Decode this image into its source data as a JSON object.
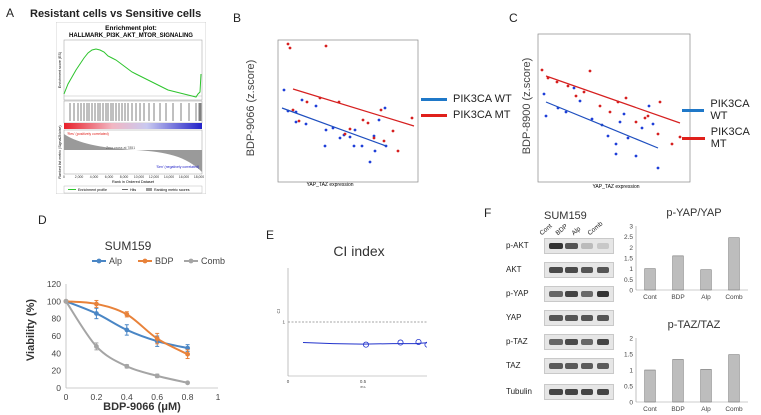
{
  "panels": {
    "A": {
      "label": "A",
      "title": "Resistant cells vs Sensitive cells",
      "plot_title_1": "Enrichment plot:",
      "plot_title_2": "HALLMARK_PI3K_AKT_MTOR_SIGNALING",
      "ylabel_top": "Enrichment score (ES)",
      "ylabel_bottom": "Ranked list metric (Signal2Noise)",
      "pos_label": "'Res' (positively correlated)",
      "neg_label": "'Sen' (negatively correlated)",
      "zero_label": "Zero cross at 7851",
      "xlabel": "Rank in Ordered Dataset",
      "legend": [
        "Enrichment profile",
        "Hits",
        "Ranking metric scores"
      ],
      "xticks": [
        "0",
        "2,000",
        "4,000",
        "6,000",
        "8,000",
        "10,000",
        "12,000",
        "14,000",
        "16,000",
        "18,000"
      ]
    },
    "B": {
      "label": "B",
      "ylabel": "BDP-9066 (z.score)",
      "xlabel": "YAP_TAZ expression",
      "legend": [
        {
          "name": "PIK3CA WT",
          "color": "#1f78c8"
        },
        {
          "name": "PIK3CA MT",
          "color": "#e0201b"
        }
      ]
    },
    "C": {
      "label": "C",
      "ylabel": "BDP-8900 (z.score)",
      "xlabel": "YAP_TAZ expression",
      "legend": [
        {
          "name": "PIK3CA WT",
          "color": "#1f78c8"
        },
        {
          "name": "PIK3CA MT",
          "color": "#e0201b"
        }
      ]
    },
    "D": {
      "label": "D"
    },
    "E": {
      "label": "E"
    },
    "F": {
      "label": "F",
      "cell_line": "SUM159",
      "lanes": [
        "Cont",
        "BDP",
        "Alp",
        "Comb"
      ],
      "blots": [
        "p-AKT",
        "AKT",
        "p-YAP",
        "YAP",
        "p-TAZ",
        "TAZ",
        "Tubulin"
      ]
    }
  },
  "chart_data": [
    {
      "type": "line",
      "title": "SUM159",
      "xlabel": "BDP-9066 (μM)",
      "ylabel": "Viability (%)",
      "x": [
        0,
        0.2,
        0.4,
        0.6,
        0.8
      ],
      "xlim": [
        0,
        1
      ],
      "ylim": [
        0,
        120
      ],
      "xticks": [
        "0",
        "0.2",
        "0.4",
        "0.6",
        "0.8",
        "1"
      ],
      "yticks": [
        "0",
        "20",
        "40",
        "60",
        "80",
        "100",
        "120"
      ],
      "legend_position": "top",
      "series": [
        {
          "name": "Alp",
          "color": "#4a86c5",
          "values": [
            100,
            86,
            67,
            54,
            46
          ],
          "errors": [
            0,
            6,
            6,
            6,
            4
          ]
        },
        {
          "name": "BDP",
          "color": "#e8823a",
          "values": [
            100,
            97,
            85,
            57,
            39
          ],
          "errors": [
            0,
            4,
            3,
            6,
            5
          ]
        },
        {
          "name": "Comb",
          "color": "#a5a5a5",
          "values": [
            100,
            48,
            25,
            14,
            6
          ],
          "errors": [
            0,
            4,
            2,
            2,
            1
          ]
        }
      ]
    },
    {
      "type": "scatter",
      "title": "CI index",
      "xlabel": "Fa",
      "ylabel": "CI",
      "xlim": [
        0,
        1
      ],
      "ylim": [
        0,
        2
      ],
      "xticks": [
        "0",
        "0.5",
        "1"
      ],
      "yticks": [
        "1"
      ],
      "reference_line": 1,
      "points": [
        {
          "x": 0.52,
          "y": 0.58
        },
        {
          "x": 0.75,
          "y": 0.62
        },
        {
          "x": 0.87,
          "y": 0.63
        },
        {
          "x": 0.93,
          "y": 0.58
        }
      ],
      "fit_curve": [
        [
          0.1,
          0.62
        ],
        [
          0.3,
          0.6
        ],
        [
          0.5,
          0.59
        ],
        [
          0.7,
          0.6
        ],
        [
          0.85,
          0.6
        ],
        [
          0.95,
          0.62
        ],
        [
          1.0,
          0.68
        ]
      ]
    },
    {
      "type": "bar",
      "title": "p-YAP/YAP",
      "categories": [
        "Cont",
        "BDP",
        "Alp",
        "Comb"
      ],
      "values": [
        1.0,
        1.6,
        0.95,
        2.45
      ],
      "ylim": [
        0,
        3
      ],
      "yticks": [
        "0",
        "0.5",
        "1",
        "1.5",
        "2",
        "2.5",
        "3"
      ],
      "color": "#bdbdbd"
    },
    {
      "type": "bar",
      "title": "p-TAZ/TAZ",
      "categories": [
        "Cont",
        "BDP",
        "Alp",
        "Comb"
      ],
      "values": [
        1.0,
        1.33,
        1.02,
        1.48
      ],
      "ylim": [
        0,
        2
      ],
      "yticks": [
        "0",
        "0.5",
        "1",
        "1.5",
        "2"
      ],
      "color": "#bdbdbd"
    }
  ]
}
